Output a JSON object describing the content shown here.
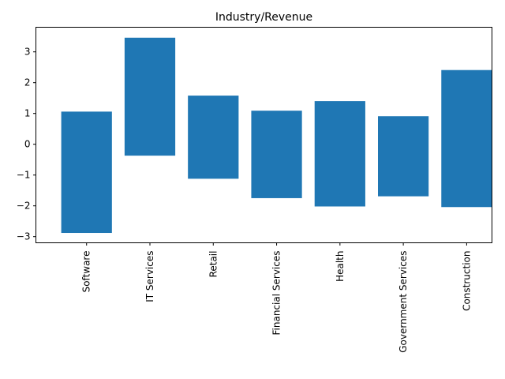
{
  "chart_data": {
    "type": "bar",
    "title": "Industry/Revenue",
    "xlabel": "",
    "ylabel": "",
    "categories": [
      "Software",
      "IT Services",
      "Retail",
      "Financial Services",
      "Health",
      "Government Services",
      "Construction"
    ],
    "series": [
      {
        "lows": [
          -2.88,
          -0.37,
          -1.12,
          -1.75,
          -2.02,
          -1.69,
          -2.04
        ],
        "highs": [
          1.06,
          3.46,
          1.58,
          1.09,
          1.4,
          0.91,
          2.41
        ]
      }
    ],
    "ylim": [
      -3.2,
      3.8
    ],
    "yticks": [
      -3,
      -2,
      -1,
      0,
      1,
      2,
      3
    ],
    "ytick_labels": [
      "−3",
      "−2",
      "−1",
      "0",
      "1",
      "2",
      "3"
    ],
    "bar_color": "#1f77b4",
    "grid": false,
    "legend": "none"
  }
}
